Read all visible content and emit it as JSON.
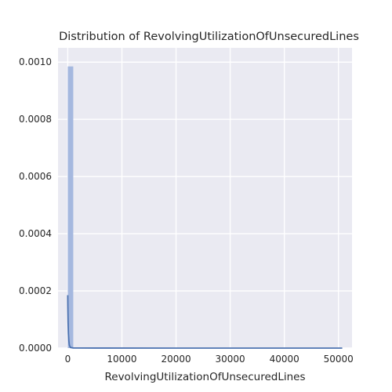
{
  "chart_data": {
    "type": "bar",
    "title": "Distribution of RevolvingUtilizationOfUnsecuredLines",
    "xlabel": "RevolvingUtilizationOfUnsecuredLines",
    "ylabel": "",
    "xlim": [
      -1800,
      52500
    ],
    "ylim": [
      0,
      0.00105
    ],
    "x_ticks": [
      0,
      10000,
      20000,
      30000,
      40000,
      50000
    ],
    "x_tick_labels": [
      "0",
      "10000",
      "20000",
      "30000",
      "40000",
      "50000"
    ],
    "y_ticks": [
      0,
      0.0002,
      0.0004,
      0.0006,
      0.0008,
      0.001
    ],
    "y_tick_labels": [
      "0.0000",
      "0.0002",
      "0.0004",
      "0.0006",
      "0.0008",
      "0.0010"
    ],
    "grid": true,
    "histogram": {
      "bin_edges": [
        0,
        1015
      ],
      "density": [
        0.000985
      ],
      "color": "#a5b8df"
    },
    "kde_line": {
      "color": "#4c72b0",
      "x": [
        0,
        15,
        60,
        120,
        200,
        300,
        500,
        1000,
        5000,
        20000,
        35000,
        50700
      ],
      "y": [
        0.000185,
        0.00015,
        9e-05,
        5e-05,
        2.5e-05,
        1e-05,
        2e-06,
        5e-07,
        1e-07,
        5e-08,
        3e-08,
        2e-08
      ]
    },
    "colors": {
      "plot_background": "#eaeaf2",
      "grid": "#ffffff",
      "text": "#262626"
    }
  }
}
